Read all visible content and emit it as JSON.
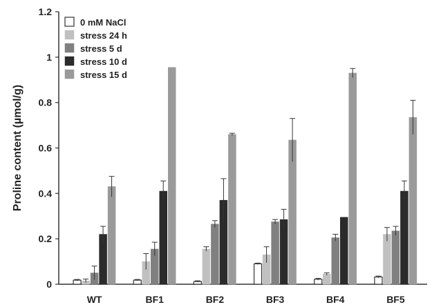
{
  "chart_data": {
    "type": "bar",
    "title": "",
    "xlabel": "",
    "ylabel": "Proline content (µmol/g)",
    "ylim": [
      0,
      1.2
    ],
    "yticks": [
      "0",
      "0.2",
      "0.4",
      "0.6",
      "0.8",
      "1",
      "1.2"
    ],
    "categories": [
      "WT",
      "BF1",
      "BF2",
      "BF3",
      "BF4",
      "BF5"
    ],
    "legend_position": "top-left",
    "grid": false,
    "series": [
      {
        "name": "0 mM NaCl",
        "color": "#ffffff",
        "stroke": "#333333",
        "values": [
          0.018,
          0.018,
          0.012,
          0.09,
          0.022,
          0.032
        ],
        "errors": [
          0.003,
          0.003,
          0.003,
          0.003,
          0.004,
          0.004
        ]
      },
      {
        "name": "stress 24 h",
        "color": "#c0c0c0",
        "stroke": "#c0c0c0",
        "values": [
          0.015,
          0.1,
          0.155,
          0.13,
          0.045,
          0.22
        ],
        "errors": [
          0.008,
          0.035,
          0.01,
          0.035,
          0.005,
          0.03
        ]
      },
      {
        "name": "stress 5 d",
        "color": "#808080",
        "stroke": "#808080",
        "values": [
          0.05,
          0.155,
          0.265,
          0.275,
          0.205,
          0.235
        ],
        "errors": [
          0.03,
          0.03,
          0.015,
          0.01,
          0.015,
          0.02
        ]
      },
      {
        "name": "stress 10 d",
        "color": "#2b2b2b",
        "stroke": "#2b2b2b",
        "values": [
          0.22,
          0.41,
          0.37,
          0.285,
          0.295,
          0.41
        ],
        "errors": [
          0.035,
          0.045,
          0.095,
          0.045,
          0.0,
          0.045
        ]
      },
      {
        "name": "stress 15 d",
        "color": "#9a9a9a",
        "stroke": "#9a9a9a",
        "values": [
          0.43,
          0.955,
          0.66,
          0.635,
          0.93,
          0.735
        ],
        "errors": [
          0.045,
          0.0,
          0.005,
          0.095,
          0.02,
          0.075
        ]
      }
    ]
  }
}
